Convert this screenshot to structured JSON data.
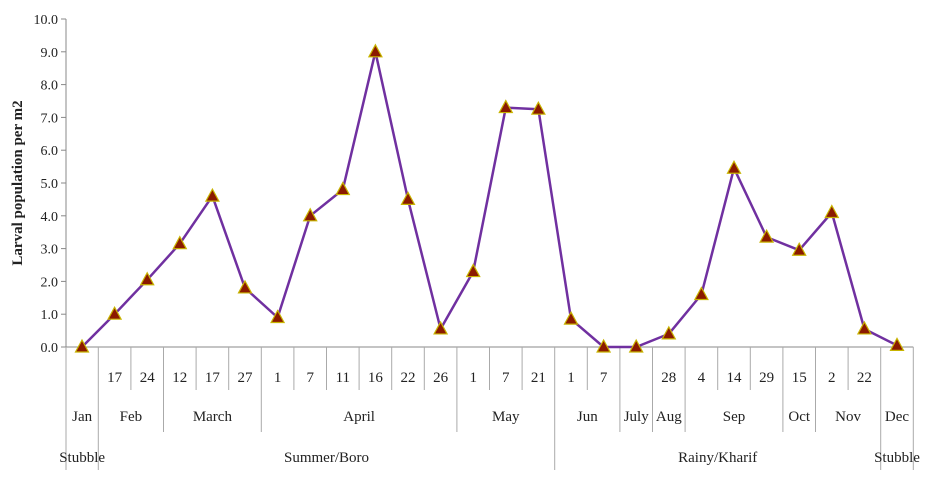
{
  "chart_data": {
    "type": "line",
    "ylabel": "Larval population per m2",
    "ylim": [
      0,
      10
    ],
    "yticks": [
      "0.0",
      "1.0",
      "2.0",
      "3.0",
      "4.0",
      "5.0",
      "6.0",
      "7.0",
      "8.0",
      "9.0",
      "10.0"
    ],
    "categories": [
      "",
      "17",
      "24",
      "12",
      "17",
      "27",
      "1",
      "7",
      "11",
      "16",
      "22",
      "26",
      "1",
      "7",
      "21",
      "1",
      "7",
      "",
      "28",
      "4",
      "14",
      "29",
      "15",
      "2",
      "22",
      ""
    ],
    "values": [
      0.0,
      1.0,
      2.05,
      3.15,
      4.6,
      1.8,
      0.9,
      4.0,
      4.8,
      9.0,
      4.5,
      0.55,
      2.3,
      7.3,
      7.25,
      0.85,
      0.0,
      0.0,
      0.4,
      1.6,
      5.45,
      3.35,
      2.95,
      4.1,
      0.55,
      0.05
    ],
    "months": [
      {
        "label": "Jan",
        "start": 0,
        "end": 1
      },
      {
        "label": "Feb",
        "start": 1,
        "end": 3
      },
      {
        "label": "March",
        "start": 3,
        "end": 6
      },
      {
        "label": "April",
        "start": 6,
        "end": 12
      },
      {
        "label": "May",
        "start": 12,
        "end": 15
      },
      {
        "label": "Jun",
        "start": 15,
        "end": 17
      },
      {
        "label": "July",
        "start": 17,
        "end": 18
      },
      {
        "label": "Aug",
        "start": 18,
        "end": 19
      },
      {
        "label": "Sep",
        "start": 19,
        "end": 22
      },
      {
        "label": "Oct",
        "start": 22,
        "end": 23
      },
      {
        "label": "Nov",
        "start": 23,
        "end": 25
      },
      {
        "label": "Dec",
        "start": 25,
        "end": 26
      }
    ],
    "seasons": [
      {
        "label": "Stubble",
        "start": 0,
        "end": 1
      },
      {
        "label": "Summer/Boro",
        "start": 1,
        "end": 15
      },
      {
        "label": "Rainy/Kharif",
        "start": 15,
        "end": 25
      },
      {
        "label": "Stubble",
        "start": 25,
        "end": 26
      }
    ],
    "line_color": "#7030a0",
    "marker_fill": "#8b1a00",
    "marker_stroke": "#c8b400",
    "grid": false
  }
}
